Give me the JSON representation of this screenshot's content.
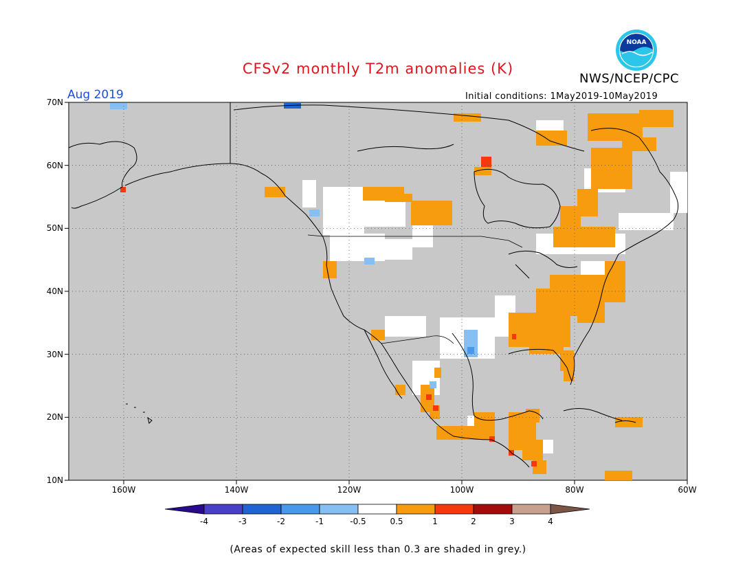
{
  "header": {
    "title": "CFSv2 monthly T2m anomalies (K)",
    "agency": "NWS/NCEP/CPC",
    "logo_text": "NOAA",
    "month": "Aug 2019",
    "initial_conditions": "Initial conditions: 1May2019-10May2019"
  },
  "map": {
    "background_color": "#c8c8c8",
    "lat_labels": [
      "70N",
      "60N",
      "50N",
      "40N",
      "30N",
      "20N",
      "10N"
    ],
    "lon_labels": [
      "160W",
      "140W",
      "120W",
      "100W",
      "80W",
      "60W"
    ]
  },
  "colorbar": {
    "colors": [
      "#2a0a8c",
      "#4a3fc8",
      "#1f64d2",
      "#4898ec",
      "#86bff4",
      "#ffffff",
      "#f79b0f",
      "#f43a0c",
      "#a50a0a",
      "#c9a08e",
      "#7b5546"
    ],
    "labels": [
      "-4",
      "-3",
      "-2",
      "-1",
      "-0.5",
      "0.5",
      "1",
      "2",
      "3",
      "4"
    ]
  },
  "footnote": "(Areas of expected skill less than 0.3 are shaded in grey.)"
}
